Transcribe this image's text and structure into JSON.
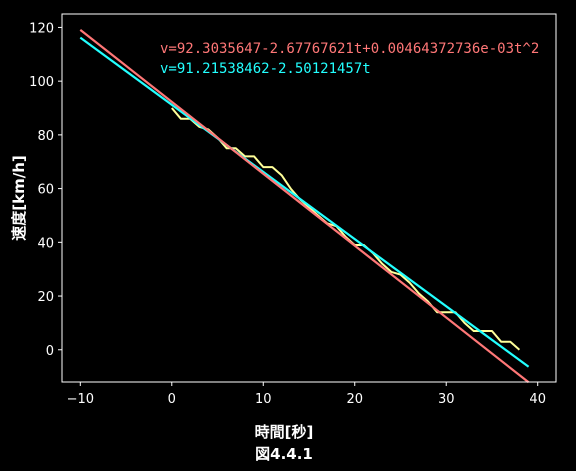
{
  "chart_data": {
    "type": "line",
    "xlabel": "時間[秒]",
    "ylabel": "速度[km/h]",
    "caption": "図4.4.1",
    "xlim": [
      -12,
      42
    ],
    "ylim": [
      -12,
      125
    ],
    "xticks": [
      -10,
      0,
      10,
      20,
      30,
      40
    ],
    "yticks": [
      0,
      20,
      40,
      60,
      80,
      100,
      120
    ],
    "grid": false,
    "colors": {
      "background": "#000000",
      "frame": "#ffffff",
      "data": "#ffff99",
      "quadratic": "#ff7777",
      "linear": "#22ffff"
    },
    "annotations": [
      {
        "text": "v=92.3035647-2.67767621t+0.00464372736e-03t^2",
        "color": "#ff7777"
      },
      {
        "text": "v=91.21538462-2.50121457t",
        "color": "#22ffff"
      }
    ],
    "series": [
      {
        "x": [
          0,
          1,
          2,
          3,
          4,
          5,
          6,
          7,
          8,
          9,
          10,
          11,
          12,
          13,
          14,
          15,
          16,
          17,
          18,
          19,
          20,
          21,
          22,
          23,
          24,
          25,
          26,
          27,
          28,
          29,
          30,
          31,
          32,
          33,
          34,
          35,
          36,
          37,
          38
        ],
        "y": [
          90,
          86,
          86,
          83,
          82,
          79,
          75,
          75,
          72,
          72,
          68,
          68,
          65,
          60,
          56,
          53,
          50,
          47,
          46,
          42,
          39,
          39,
          36,
          32,
          29,
          28,
          25,
          21,
          18,
          14,
          14,
          14,
          10,
          7,
          7,
          7,
          3,
          3,
          0
        ]
      },
      {
        "x": [
          -10,
          39
        ],
        "y": [
          119.08,
          -12.12
        ]
      },
      {
        "x": [
          -10,
          39
        ],
        "y": [
          116.23,
          -6.33
        ]
      }
    ]
  }
}
